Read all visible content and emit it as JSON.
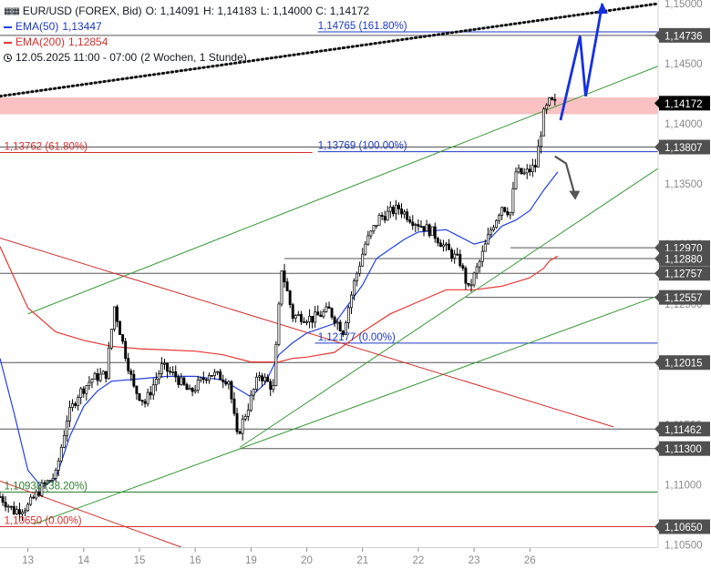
{
  "legend": {
    "symbol_line": "EUR/USD (FOREX, Bid)",
    "open": "O: 1,14091",
    "high": "H: 1,14183",
    "low": "L: 1,14000",
    "close": "C: 1,14172",
    "ema50_label": "EMA(50)",
    "ema50_value": "1,13447",
    "ema200_label": "EMA(200)",
    "ema200_value": "1,12854",
    "range_text": "12.05.2025 11:00 - 07:00",
    "period_text": "(2 Wochen, 1 Stunde)"
  },
  "colors": {
    "candle": "#000000",
    "ema50": "#2340e0",
    "ema200": "#e53935",
    "support_lines": "#555555",
    "fib_blue": "#1d39c4",
    "fib_red": "#d32f2f",
    "fib_green": "#2e7d32",
    "channel_green": "#3a9a3a",
    "resistance_zone": "#f9c1c1",
    "arrow_blue": "#1530e0",
    "arrow_gray": "#555555",
    "price_box": "#505050",
    "current_box": "#000000"
  },
  "chart_data": {
    "type": "candlestick",
    "y_axis": {
      "range": [
        1.1048,
        1.1503
      ],
      "ticks": [
        "1,15000",
        "1,14500",
        "1,14000",
        "1,13500",
        "1,13000",
        "1,12500",
        "1,12000",
        "1,11500",
        "1,11000",
        "1,10500"
      ],
      "tick_values": [
        1.15,
        1.145,
        1.14,
        1.135,
        1.13,
        1.125,
        1.12,
        1.115,
        1.11,
        1.105
      ]
    },
    "x_axis": {
      "labels": [
        "13",
        "14",
        "15",
        "16",
        "19",
        "20",
        "21",
        "22",
        "23",
        "26"
      ],
      "label_positions": [
        1,
        3,
        5,
        7,
        9,
        11,
        13,
        15,
        17,
        19
      ],
      "range": [
        0,
        23.6
      ]
    },
    "price_labels": [
      {
        "text": "1,14736",
        "value": 1.14736,
        "style": "box"
      },
      {
        "text": "1,14172",
        "value": 1.14172,
        "style": "current"
      },
      {
        "text": "1,13807",
        "value": 1.13807,
        "style": "box"
      },
      {
        "text": "1,12970",
        "value": 1.1297,
        "style": "box"
      },
      {
        "text": "1,12880",
        "value": 1.1288,
        "style": "box"
      },
      {
        "text": "1,12757",
        "value": 1.12757,
        "style": "box"
      },
      {
        "text": "1,12557",
        "value": 1.12557,
        "style": "box"
      },
      {
        "text": "1,12015",
        "value": 1.12015,
        "style": "box"
      },
      {
        "text": "1,11462",
        "value": 1.11462,
        "style": "box"
      },
      {
        "text": "1,11300",
        "value": 1.113,
        "style": "box"
      },
      {
        "text": "1,10650",
        "value": 1.1065,
        "style": "box"
      }
    ],
    "fib_annotations": [
      {
        "text": "1,14765 (161.80%)",
        "value": 1.14765,
        "x": 11.4,
        "color": "blue"
      },
      {
        "text": "1,13769 (100.00%)",
        "value": 1.13769,
        "x": 11.4,
        "color": "blue"
      },
      {
        "text": "1,13762 (61.80%)",
        "value": 1.13762,
        "x": 0.15,
        "color": "red"
      },
      {
        "text": "1,12177 (0.00%)",
        "value": 1.12177,
        "x": 11.4,
        "color": "blue"
      },
      {
        "text": "1,10938 (38.20%)",
        "value": 1.10938,
        "x": 0.15,
        "color": "green"
      },
      {
        "text": "1,10650 (0.00%)",
        "value": 1.1065,
        "x": 0.15,
        "color": "red"
      }
    ],
    "horizontal_lines": [
      {
        "value": 1.14765,
        "x_start": 11.4,
        "color": "blue"
      },
      {
        "value": 1.14736,
        "x_start": 0,
        "color": "gray"
      },
      {
        "value": 1.13807,
        "x_start": 0,
        "color": "gray"
      },
      {
        "value": 1.13769,
        "x_start": 11.4,
        "color": "blue"
      },
      {
        "value": 1.13762,
        "x_start": 0,
        "x_end": 11.2,
        "color": "red"
      },
      {
        "value": 1.1297,
        "x_start": 18.3,
        "color": "gray"
      },
      {
        "value": 1.1288,
        "x_start": 10.2,
        "color": "gray"
      },
      {
        "value": 1.12757,
        "x_start": 0,
        "color": "gray"
      },
      {
        "value": 1.12557,
        "x_start": 16.7,
        "color": "gray"
      },
      {
        "value": 1.12177,
        "x_start": 11.3,
        "color": "blue"
      },
      {
        "value": 1.12015,
        "x_start": 0,
        "color": "gray"
      },
      {
        "value": 1.11462,
        "x_start": 0,
        "color": "gray"
      },
      {
        "value": 1.113,
        "x_start": 8.6,
        "color": "gray"
      },
      {
        "value": 1.10938,
        "x_start": 0,
        "color": "green"
      },
      {
        "value": 1.1065,
        "x_start": 0,
        "color": "red"
      }
    ],
    "resistance_zone": [
      1.1408,
      1.1422
    ],
    "trend_lines": [
      {
        "points": [
          [
            1,
            1.1242
          ],
          [
            23.6,
            1.1448
          ]
        ],
        "color": "green"
      },
      {
        "points": [
          [
            8.6,
            1.1131
          ],
          [
            23.6,
            1.1363
          ]
        ],
        "color": "green"
      },
      {
        "points": [
          [
            1.2,
            1.1067
          ],
          [
            23.6,
            1.1257
          ]
        ],
        "color": "green"
      },
      {
        "points": [
          [
            0,
            1.1305
          ],
          [
            22,
            1.1148
          ]
        ],
        "color": "red"
      },
      {
        "points": [
          [
            0,
            1.1103
          ],
          [
            6.5,
            1.1048
          ]
        ],
        "color": "red"
      },
      {
        "points": [
          [
            0,
            1.1423
          ],
          [
            23.6,
            1.15
          ]
        ],
        "color": "black-dotted"
      }
    ],
    "projection_blue": [
      [
        20.1,
        1.1403
      ],
      [
        20.8,
        1.1473
      ],
      [
        21.0,
        1.1423
      ],
      [
        21.6,
        1.15
      ]
    ],
    "projection_gray": [
      [
        19.9,
        1.1373
      ],
      [
        20.3,
        1.1367
      ],
      [
        20.6,
        1.1342
      ]
    ],
    "close_anchors": [
      [
        0,
        1.109
      ],
      [
        0.5,
        1.1078
      ],
      [
        1.0,
        1.1082
      ],
      [
        1.5,
        1.1098
      ],
      [
        2.0,
        1.1108
      ],
      [
        2.4,
        1.1155
      ],
      [
        2.8,
        1.1175
      ],
      [
        3.3,
        1.1188
      ],
      [
        3.8,
        1.1192
      ],
      [
        4.1,
        1.1248
      ],
      [
        4.4,
        1.1218
      ],
      [
        4.8,
        1.118
      ],
      [
        5.2,
        1.1168
      ],
      [
        5.8,
        1.1198
      ],
      [
        6.3,
        1.119
      ],
      [
        6.8,
        1.1176
      ],
      [
        7.5,
        1.1193
      ],
      [
        8.2,
        1.1187
      ],
      [
        8.5,
        1.114
      ],
      [
        8.9,
        1.1165
      ],
      [
        9.3,
        1.1192
      ],
      [
        9.8,
        1.118
      ],
      [
        10.1,
        1.128
      ],
      [
        10.5,
        1.124
      ],
      [
        10.8,
        1.124
      ],
      [
        11.2,
        1.1238
      ],
      [
        11.8,
        1.1245
      ],
      [
        12.3,
        1.1228
      ],
      [
        12.7,
        1.1268
      ],
      [
        13.1,
        1.13
      ],
      [
        13.6,
        1.1322
      ],
      [
        14.3,
        1.133
      ],
      [
        14.8,
        1.132
      ],
      [
        15.5,
        1.131
      ],
      [
        16.0,
        1.1296
      ],
      [
        16.5,
        1.1285
      ],
      [
        16.8,
        1.1262
      ],
      [
        17.2,
        1.1285
      ],
      [
        17.6,
        1.1312
      ],
      [
        18.0,
        1.1332
      ],
      [
        18.3,
        1.1326
      ],
      [
        18.5,
        1.136
      ],
      [
        18.8,
        1.1358
      ],
      [
        19.2,
        1.1365
      ],
      [
        19.5,
        1.1408
      ],
      [
        19.7,
        1.1418
      ],
      [
        19.9,
        1.1417
      ]
    ],
    "ema50": [
      [
        0,
        1.1205
      ],
      [
        0.5,
        1.116
      ],
      [
        1.0,
        1.1112
      ],
      [
        1.5,
        1.1098
      ],
      [
        2.0,
        1.1105
      ],
      [
        2.5,
        1.114
      ],
      [
        3.0,
        1.1165
      ],
      [
        3.5,
        1.1178
      ],
      [
        4.0,
        1.1186
      ],
      [
        5.0,
        1.1188
      ],
      [
        6.0,
        1.119
      ],
      [
        7.0,
        1.119
      ],
      [
        8.0,
        1.1187
      ],
      [
        9.0,
        1.1173
      ],
      [
        9.5,
        1.1184
      ],
      [
        10.0,
        1.1208
      ],
      [
        10.5,
        1.1218
      ],
      [
        11.0,
        1.1226
      ],
      [
        12.0,
        1.1234
      ],
      [
        13.0,
        1.1266
      ],
      [
        13.5,
        1.1288
      ],
      [
        14.0,
        1.1296
      ],
      [
        14.5,
        1.1304
      ],
      [
        15.0,
        1.131
      ],
      [
        16.0,
        1.1312
      ],
      [
        16.5,
        1.1306
      ],
      [
        17.0,
        1.13
      ],
      [
        17.5,
        1.1303
      ],
      [
        18.0,
        1.1315
      ],
      [
        18.5,
        1.132
      ],
      [
        19.0,
        1.1328
      ],
      [
        19.5,
        1.1345
      ],
      [
        20.0,
        1.136
      ]
    ],
    "ema200": [
      [
        0,
        1.1298
      ],
      [
        1.0,
        1.1247
      ],
      [
        2.0,
        1.1227
      ],
      [
        3.0,
        1.122
      ],
      [
        4.0,
        1.1215
      ],
      [
        5.0,
        1.1213
      ],
      [
        6.0,
        1.1212
      ],
      [
        7.0,
        1.1211
      ],
      [
        8.0,
        1.1208
      ],
      [
        9.0,
        1.1202
      ],
      [
        10.0,
        1.1202
      ],
      [
        10.5,
        1.1205
      ],
      [
        11.0,
        1.1206
      ],
      [
        12.0,
        1.121
      ],
      [
        13.0,
        1.1227
      ],
      [
        14.0,
        1.1242
      ],
      [
        15.0,
        1.1252
      ],
      [
        16.0,
        1.1262
      ],
      [
        17.0,
        1.1262
      ],
      [
        18.0,
        1.1265
      ],
      [
        19.0,
        1.1272
      ],
      [
        19.5,
        1.128
      ],
      [
        19.7,
        1.1286
      ],
      [
        20.0,
        1.129
      ]
    ]
  }
}
